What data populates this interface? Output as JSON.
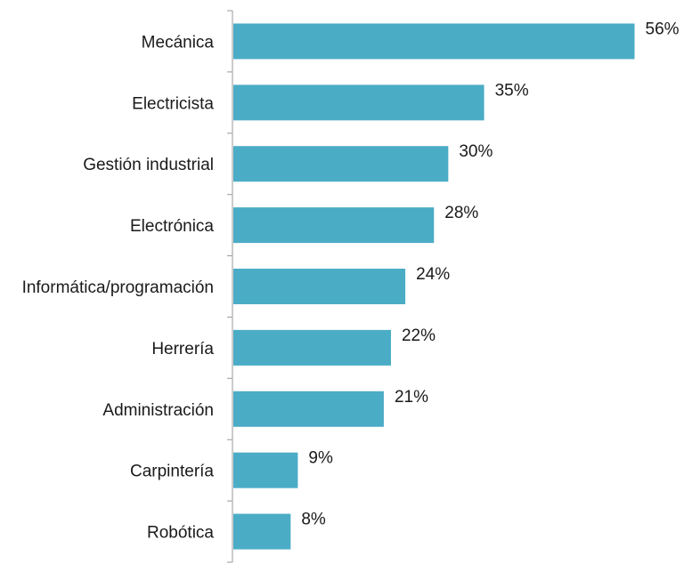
{
  "chart_data": {
    "type": "bar",
    "orientation": "horizontal",
    "categories": [
      "Mecánica",
      "Electricista",
      "Gestión industrial",
      "Electrónica",
      "Informática/programación",
      "Herrería",
      "Administración",
      "Carpintería",
      "Robótica"
    ],
    "values": [
      56,
      35,
      30,
      28,
      24,
      22,
      21,
      9,
      8
    ],
    "value_labels": [
      "56%",
      "35%",
      "30%",
      "28%",
      "24%",
      "22%",
      "21%",
      "9%",
      "8%"
    ],
    "xlim": [
      0,
      60
    ],
    "grid": false,
    "legend": "none",
    "bar_color": "#4bacc6",
    "axis_color": "#999999",
    "title": "",
    "xlabel": "",
    "ylabel": ""
  }
}
